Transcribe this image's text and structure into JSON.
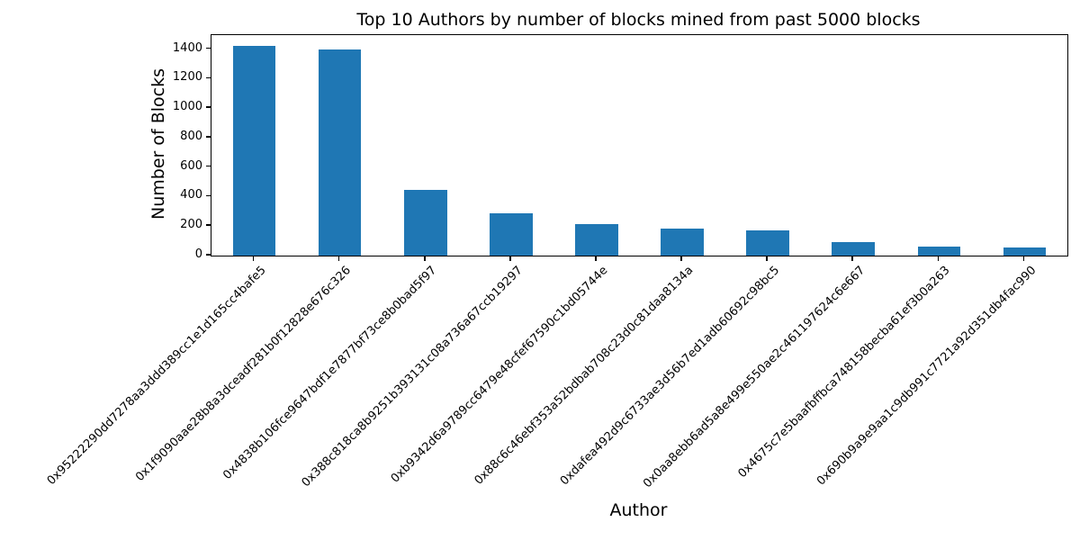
{
  "chart_data": {
    "type": "bar",
    "title": "Top 10 Authors by number of blocks mined from past 5000 blocks",
    "xlabel": "Author",
    "ylabel": "Number of Blocks",
    "categories": [
      "0x95222290dd7278aa3ddd389cc1e1d165cc4bafe5",
      "0x1f9090aae28b8a3dceadf281b0f12828e676c326",
      "0x4838b106fce9647bdf1e7877bf73ce8b0bad5f97",
      "0x388c818ca8b9251b393131c08a736a67ccb19297",
      "0xb9342d6a9789cc6479e48cfef67590c1bd05744e",
      "0x88c6c46ebf353a52bdbab708c23d0c81daa8134a",
      "0xdafea492d9c6733ae3d56b7ed1adb60692c98bc5",
      "0x0aa8ebb6ad5a8e499e550ae2c461197624c6e667",
      "0x4675c7e5baafbffbca748158becba61ef3b0a263",
      "0x690b9a9e9aa1c9db991c7721a92d351db4fac990"
    ],
    "values": [
      1420,
      1395,
      445,
      285,
      215,
      185,
      172,
      92,
      60,
      55
    ],
    "yticks": [
      0,
      200,
      400,
      600,
      800,
      1000,
      1200,
      1400
    ],
    "ylim": [
      0,
      1495
    ],
    "bar_color": "#1f77b4",
    "bar_width_fraction": 0.5,
    "grid": false,
    "legend_position": "none",
    "x_tick_label_rotation_deg": 45
  }
}
